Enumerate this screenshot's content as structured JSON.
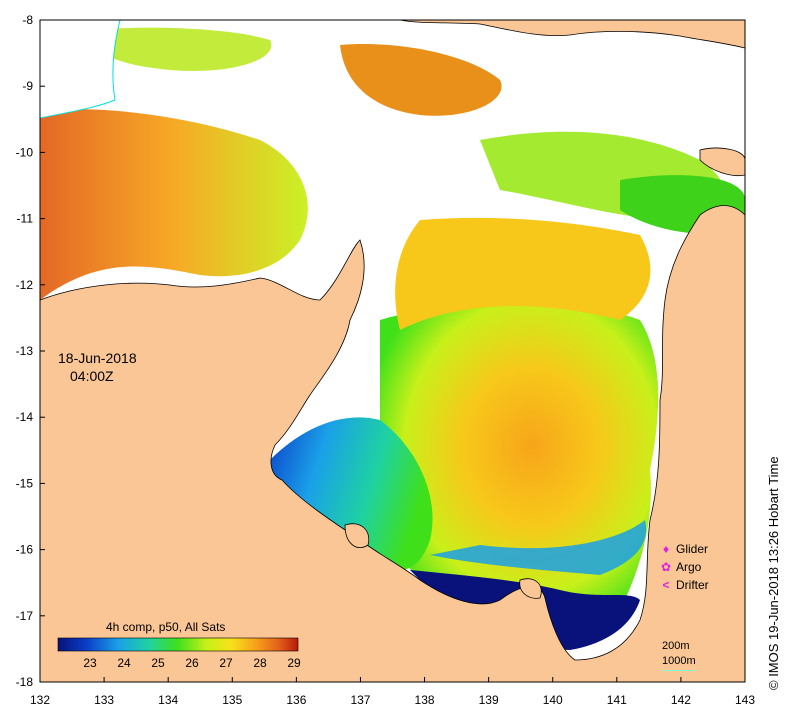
{
  "map": {
    "date": "18-Jun-2018",
    "time": "04:00Z",
    "colorbar": {
      "title": "4h comp, p50, All Sats",
      "ticks": [
        "23",
        "24",
        "25",
        "26",
        "27",
        "28",
        "29"
      ],
      "colors": [
        "#08127a",
        "#0a3fc8",
        "#1aa0e8",
        "#1fd2a0",
        "#3fe01a",
        "#c8f01a",
        "#f7e21a",
        "#f7a51a",
        "#e2601a",
        "#b81a0a"
      ]
    },
    "axes": {
      "x_ticks": [
        "132",
        "133",
        "134",
        "135",
        "136",
        "137",
        "138",
        "139",
        "140",
        "141",
        "142",
        "143"
      ],
      "y_ticks": [
        "-8",
        "-9",
        "-10",
        "-11",
        "-12",
        "-13",
        "-14",
        "-15",
        "-16",
        "-17",
        "-18"
      ]
    },
    "legend": {
      "glider": {
        "label": "Glider",
        "color": "#e020e0",
        "symbol": "♦"
      },
      "argo": {
        "label": "Argo",
        "color": "#e020e0",
        "symbol": "✿"
      },
      "drifter": {
        "label": "Drifter",
        "color": "#e020e0",
        "symbol": "<"
      }
    },
    "depth": {
      "d200": "200m",
      "d1000": "1000m"
    },
    "credit": "© IMOS 19-Jun-2018 13:26 Hobart Time",
    "land_color": "#fac696",
    "nodata_color": "#ffffff"
  }
}
